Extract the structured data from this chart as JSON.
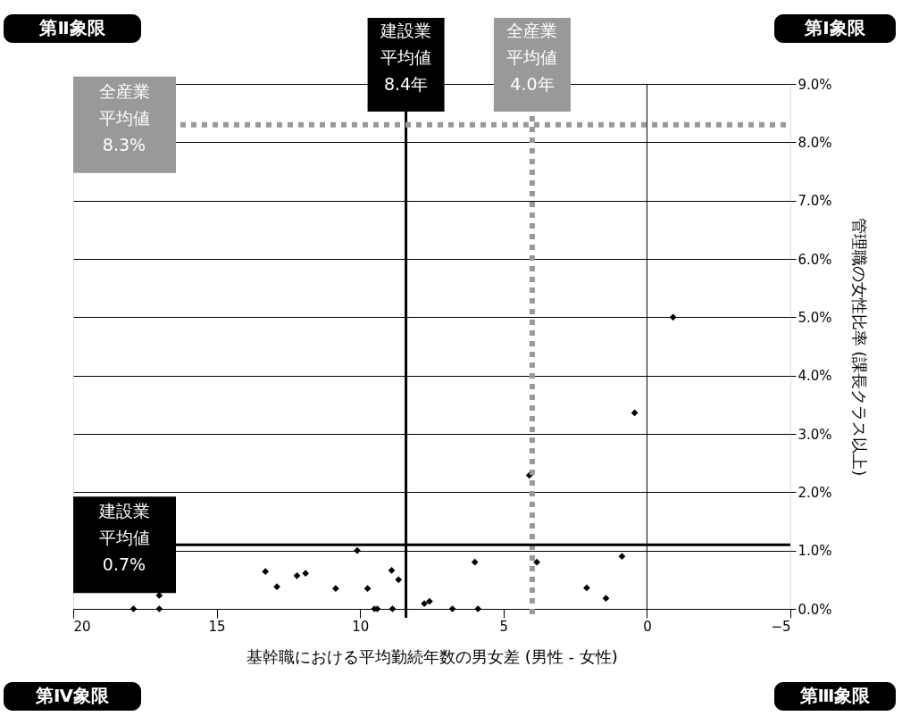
{
  "chart_data": {
    "type": "scatter",
    "xlabel": "基幹職における平均勤続年数の男女差 (男性 - 女性)",
    "ylabel": "管理職の女性比率 (課長クラス以上)",
    "xlim": [
      20,
      -5
    ],
    "xticks": [
      20,
      15,
      10,
      5,
      0,
      -5
    ],
    "ylim": [
      0,
      9
    ],
    "yticks": [
      {
        "value": 0,
        "label": "0.0%"
      },
      {
        "value": 1,
        "label": "1.0%"
      },
      {
        "value": 2,
        "label": "2.0%"
      },
      {
        "value": 3,
        "label": "3.0%"
      },
      {
        "value": 4,
        "label": "4.0%"
      },
      {
        "value": 5,
        "label": "5.0%"
      },
      {
        "value": 6,
        "label": "6.0%"
      },
      {
        "value": 7,
        "label": "7.0%"
      },
      {
        "value": 8,
        "label": "8.0%"
      },
      {
        "value": 9,
        "label": "9.0%"
      }
    ],
    "grid": "y",
    "marker": "diamond",
    "series": [
      {
        "color": "#000000",
        "x": [
          17.9,
          17.0,
          17.0,
          13.3,
          12.9,
          12.2,
          11.9,
          10.85,
          10.1,
          9.74,
          9.5,
          9.4,
          8.9,
          8.66,
          8.87,
          7.76,
          7.58,
          6.78,
          5.89,
          6.0,
          3.84,
          2.1,
          1.43,
          0.87,
          -0.91,
          0.43,
          4.1
        ],
        "values": [
          0,
          0,
          0.23,
          0.64,
          0.38,
          0.57,
          0.61,
          0.35,
          1.0,
          0.35,
          0,
          0,
          0.66,
          0.5,
          0,
          0.09,
          0.13,
          0,
          0,
          0.8,
          0.8,
          0.36,
          0.18,
          0.9,
          5.0,
          3.36,
          2.29
        ]
      }
    ],
    "ref_lines": [
      {
        "axis": "x",
        "value": 0,
        "color": "#000000",
        "line_style": "solid"
      },
      {
        "axis": "x",
        "value": 8.4,
        "label": "建設業平均値8.4年",
        "color": "#000000",
        "line_style": "solid"
      },
      {
        "axis": "x",
        "value": 4.0,
        "label": "全産業平均値4.0年",
        "color": "#999999",
        "line_style": "dotted"
      },
      {
        "axis": "y",
        "value": 8.3,
        "label": "全産業平均値8.3%",
        "color": "#999999",
        "line_style": "dotted"
      },
      {
        "axis": "y",
        "value": 1.1,
        "label": "建設業平均値0.7%",
        "color": "#000000",
        "line_style": "solid"
      }
    ],
    "annotations": [
      "第Ⅱ象限",
      "第Ⅰ象限",
      "第Ⅳ象限",
      "第Ⅲ象限"
    ]
  }
}
